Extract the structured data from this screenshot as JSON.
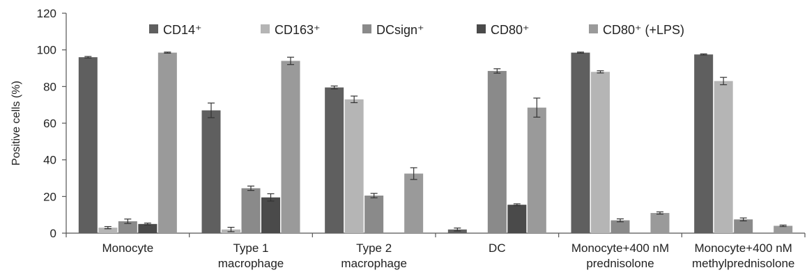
{
  "chart_data": {
    "type": "bar",
    "ylabel": "Positive cells (%)",
    "ylim": [
      0,
      120
    ],
    "yticks": [
      0,
      20,
      40,
      60,
      80,
      100,
      120
    ],
    "grid": false,
    "legend_position": "top",
    "categories": [
      [
        "Monocyte"
      ],
      [
        "Type 1",
        "macrophage"
      ],
      [
        "Type 2",
        "macrophage"
      ],
      [
        "DC"
      ],
      [
        "Monocyte+400 nM",
        "prednisolone"
      ],
      [
        "Monocyte+400 nM",
        "methylprednisolone"
      ]
    ],
    "series": [
      {
        "name": "CD14⁺",
        "color": "#5f5f5f",
        "values": [
          96,
          67,
          79.5,
          2,
          98.5,
          97.5
        ],
        "errors": [
          0.4,
          4,
          0.8,
          0.8,
          0.3,
          0.3
        ]
      },
      {
        "name": "CD163⁺",
        "color": "#b5b5b5",
        "values": [
          3,
          2,
          73,
          null,
          88,
          83
        ],
        "errors": [
          0.6,
          1.2,
          1.8,
          null,
          0.6,
          2
        ]
      },
      {
        "name": "DCsign⁺",
        "color": "#8a8a8a",
        "values": [
          6.5,
          24.5,
          20.5,
          88.5,
          7,
          7.5
        ],
        "errors": [
          1.2,
          1.2,
          1.2,
          1.2,
          0.8,
          0.8
        ]
      },
      {
        "name": "CD80⁺",
        "color": "#4a4a4a",
        "values": [
          5,
          19.5,
          null,
          15.5,
          null,
          null
        ],
        "errors": [
          0.5,
          2,
          null,
          0.5,
          null,
          null
        ]
      },
      {
        "name": "CD80⁺ (+LPS)",
        "color": "#9a9a9a",
        "values": [
          98.5,
          94,
          32.5,
          68.5,
          11,
          4
        ],
        "errors": [
          0.3,
          2,
          3.2,
          5.2,
          0.6,
          0.4
        ]
      }
    ]
  }
}
